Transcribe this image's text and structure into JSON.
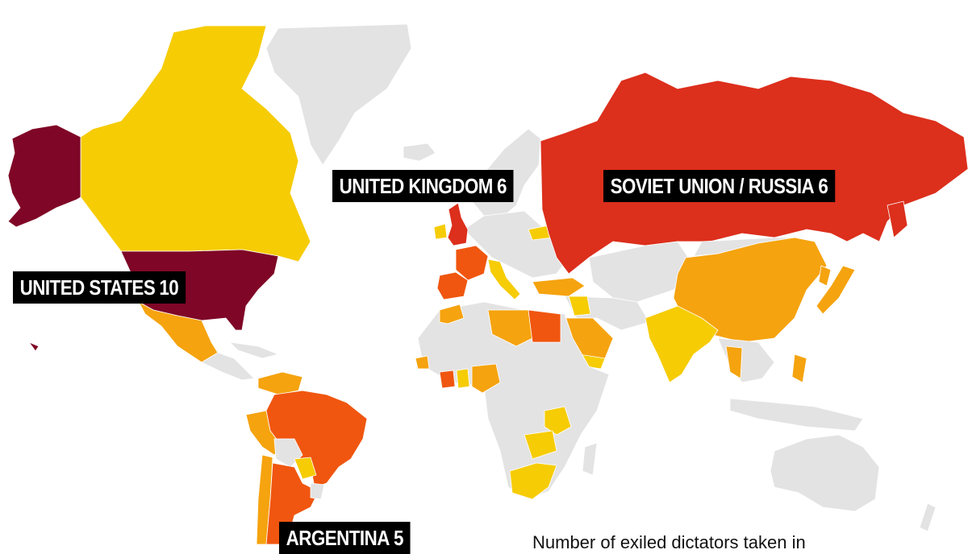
{
  "colors": {
    "none": "#e3e3e3",
    "level1": "#f6cc05",
    "level2": "#f5a30f",
    "level3": "#f0560f",
    "level4": "#dc2f1c",
    "level5": "#7f0626"
  },
  "labels": {
    "us": {
      "name": "UNITED STATES",
      "count": "10"
    },
    "uk": {
      "name": "UNITED KINGDOM",
      "count": "6"
    },
    "ru": {
      "name": "SOVIET UNION / RUSSIA",
      "count": "6"
    },
    "ar": {
      "name": "ARGENTINA",
      "count": "5"
    }
  },
  "legend": {
    "title": "Number of exiled dictators taken in"
  },
  "countries": [
    {
      "name": "United States",
      "level": 5
    },
    {
      "name": "Soviet Union / Russia",
      "level": 4
    },
    {
      "name": "United Kingdom",
      "level": 4
    },
    {
      "name": "Argentina",
      "level": 3
    },
    {
      "name": "Brazil",
      "level": 3
    },
    {
      "name": "France",
      "level": 3
    },
    {
      "name": "Spain",
      "level": 3
    },
    {
      "name": "Egypt",
      "level": 3
    },
    {
      "name": "Canada",
      "level": 1
    },
    {
      "name": "Mexico",
      "level": 2
    },
    {
      "name": "China",
      "level": 2
    },
    {
      "name": "Saudi Arabia",
      "level": 2
    },
    {
      "name": "Libya",
      "level": 2
    },
    {
      "name": "India",
      "level": 1
    },
    {
      "name": "South Africa",
      "level": 1
    },
    {
      "name": "Italy",
      "level": 1
    },
    {
      "name": "Belarus",
      "level": 1
    }
  ]
}
